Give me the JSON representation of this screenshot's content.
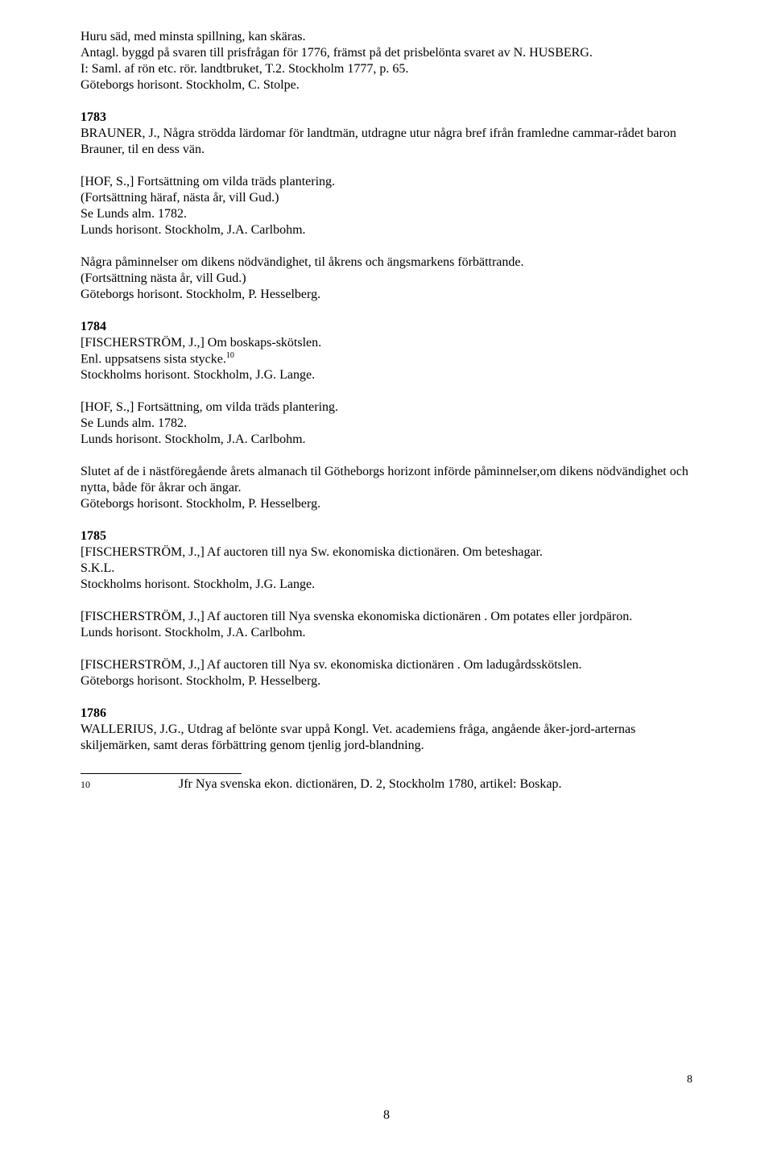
{
  "e1": {
    "l1": "Huru säd, med minsta spillning, kan skäras.",
    "l2": "Antagl. byggd på svaren till prisfrågan för 1776, främst på det prisbelönta svaret av N. HUSBERG.",
    "l3": "I: Saml. af rön etc. rör. landtbruket, T.2. Stockholm 1777, p. 65.",
    "l4": "Göteborgs horisont. Stockholm, C. Stolpe."
  },
  "y1783": "1783",
  "e2": {
    "l1": "BRAUNER, J., Några strödda lärdomar för landtmän, utdragne utur några bref ifrån framledne cammar-rådet baron Brauner, til en dess vän."
  },
  "e3": {
    "l1": "[HOF, S.,] Fortsättning om vilda träds plantering.",
    "l2": "(Fortsättning häraf, nästa år, vill Gud.)",
    "l3": "Se Lunds alm. 1782.",
    "l4": "Lunds horisont. Stockholm, J.A. Carlbohm."
  },
  "e4": {
    "l1": "Några påminnelser om dikens nödvändighet, til åkrens och ängsmarkens förbättrande.",
    "l2": "(Fortsättning nästa år, vill Gud.)",
    "l3": "Göteborgs horisont. Stockholm, P. Hesselberg."
  },
  "y1784": "1784",
  "e5": {
    "l1a": "[FISCHERSTRÖM, J.,] Om boskaps-skötslen.",
    "l2a": "Enl. uppsatsens sista stycke.",
    "l2sup": "10",
    "l3": "Stockholms horisont. Stockholm, J.G. Lange."
  },
  "e6": {
    "l1": "[HOF, S.,] Fortsättning, om vilda träds plantering.",
    "l2": "Se Lunds alm. 1782.",
    "l3": "Lunds horisont. Stockholm, J.A. Carlbohm."
  },
  "e7": {
    "l1": "Slutet af de i nästföregående årets almanach til Götheborgs horizont införde påminnelser,om dikens nödvändighet och nytta, både för åkrar och ängar.",
    "l2": "Göteborgs horisont. Stockholm, P. Hesselberg."
  },
  "y1785": "1785",
  "e8": {
    "l1": "[FISCHERSTRÖM, J.,] Af auctoren till nya Sw. ekonomiska dictionären. Om beteshagar.",
    "l2": "S.K.L.",
    "l3": "Stockholms horisont. Stockholm, J.G. Lange."
  },
  "e9": {
    "l1": "[FISCHERSTRÖM, J.,] Af auctoren till Nya svenska ekonomiska dictionären . Om potates eller jordpäron.",
    "l2": "Lunds horisont. Stockholm, J.A. Carlbohm."
  },
  "e10": {
    "l1": "[FISCHERSTRÖM, J.,] Af auctoren till Nya sv. ekonomiska dictionären . Om ladugårdsskötslen.",
    "l2": "Göteborgs horisont. Stockholm, P. Hesselberg."
  },
  "y1786": "1786",
  "e11": {
    "l1": "WALLERIUS, J.G., Utdrag af belönte svar uppå Kongl. Vet. academiens fråga, angående åker-jord-arternas skiljemärken, samt deras förbättring genom tjenlig jord-blandning."
  },
  "footnote": {
    "num": "10",
    "text": "Jfr Nya svenska ekon. dictionären, D. 2, Stockholm 1780, artikel: Boskap."
  },
  "pagenum_right": "8",
  "pagenum_center": "8"
}
